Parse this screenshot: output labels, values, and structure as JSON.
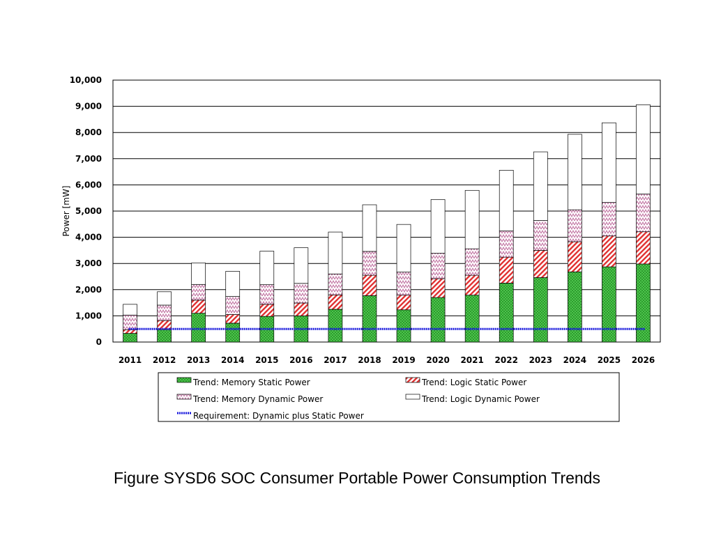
{
  "caption": "Figure SYSD6  SOC Consumer Portable Power Consumption Trends",
  "chart_data": {
    "type": "bar",
    "stacked": true,
    "title": "",
    "xlabel": "",
    "ylabel": "Power [mW]",
    "ylim": [
      0,
      10000
    ],
    "yticks": [
      0,
      1000,
      2000,
      3000,
      4000,
      5000,
      6000,
      7000,
      8000,
      9000,
      10000
    ],
    "ytick_labels": [
      "0",
      "1,000",
      "2,000",
      "3,000",
      "4,000",
      "5,000",
      "6,000",
      "7,000",
      "8,000",
      "9,000",
      "10,000"
    ],
    "grid": "horizontal",
    "legend_position": "bottom",
    "categories": [
      "2011",
      "2012",
      "2013",
      "2014",
      "2015",
      "2016",
      "2017",
      "2018",
      "2019",
      "2020",
      "2021",
      "2022",
      "2023",
      "2024",
      "2025",
      "2026"
    ],
    "series": [
      {
        "name": "Trend: Memory Static Power",
        "pattern": "dots",
        "color": "#1e9e1e",
        "values": [
          330,
          480,
          1100,
          720,
          980,
          1000,
          1250,
          1770,
          1230,
          1700,
          1790,
          2250,
          2460,
          2680,
          2870,
          2980
        ]
      },
      {
        "name": "Trend: Logic Static Power",
        "pattern": "diagonal",
        "color": "#e03030",
        "values": [
          140,
          340,
          500,
          330,
          460,
          490,
          550,
          780,
          560,
          720,
          760,
          990,
          1040,
          1150,
          1180,
          1230
        ]
      },
      {
        "name": "Trend: Memory Dynamic Power",
        "pattern": "zigzag",
        "color": "#c070a0",
        "values": [
          560,
          590,
          600,
          690,
          750,
          750,
          800,
          910,
          880,
          970,
          1010,
          1000,
          1140,
          1220,
          1280,
          1440
        ]
      },
      {
        "name": "Trend: Logic Dynamic Power",
        "pattern": "none",
        "color": "#ffffff",
        "values": [
          410,
          510,
          820,
          960,
          1280,
          1360,
          1600,
          1780,
          1820,
          2050,
          2230,
          2320,
          2620,
          2880,
          3040,
          3410
        ]
      }
    ],
    "requirement_line": {
      "name": "Requirement: Dynamic plus Static Power",
      "value": 500,
      "color": "#1414dc"
    }
  }
}
